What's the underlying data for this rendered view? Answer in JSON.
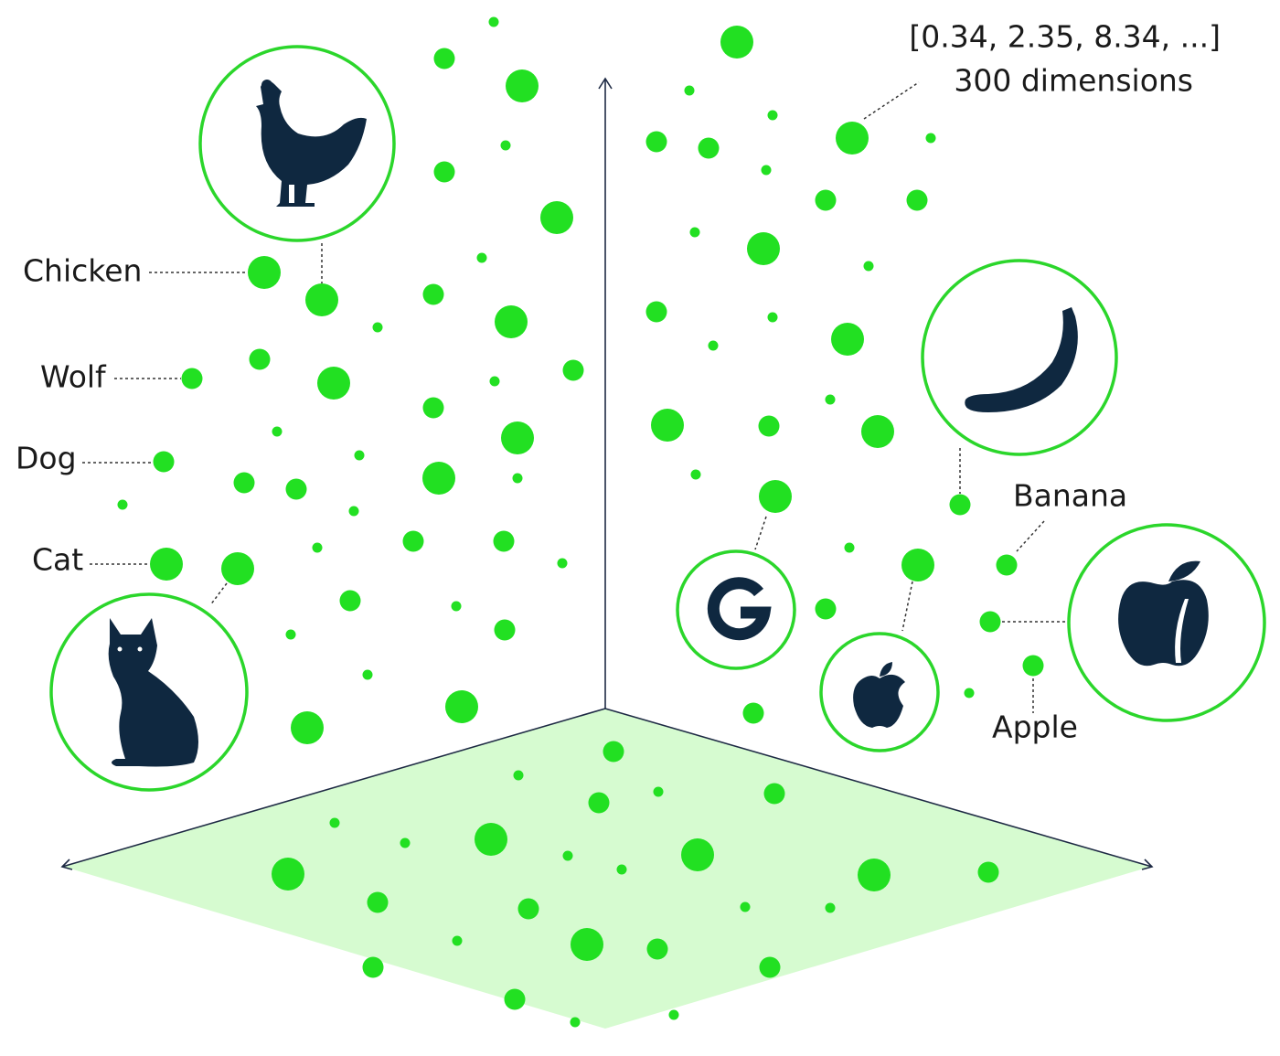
{
  "labels": {
    "chicken": "Chicken",
    "wolf": "Wolf",
    "dog": "Dog",
    "cat": "Cat",
    "banana": "Banana",
    "apple": "Apple"
  },
  "vector": {
    "values": "[0.34, 2.35, 8.34, ...]",
    "dimensions": "300 dimensions"
  }
}
